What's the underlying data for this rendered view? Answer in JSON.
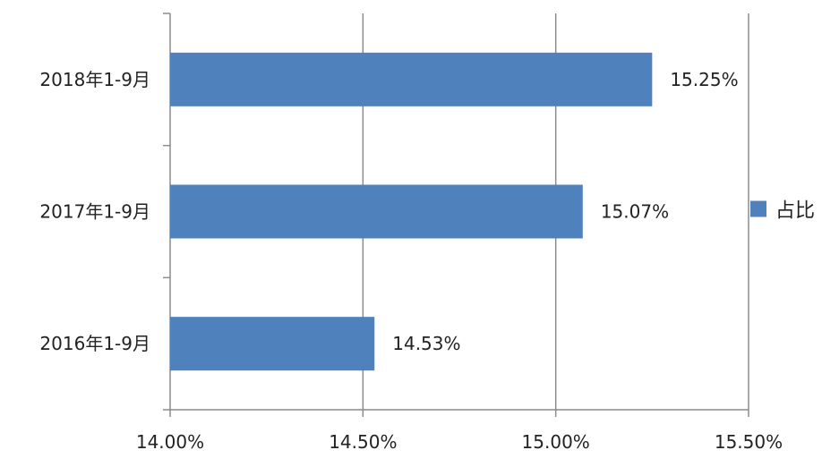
{
  "chart_data": {
    "type": "bar",
    "orientation": "horizontal",
    "categories": [
      "2018年1-9月",
      "2017年1-9月",
      "2016年1-9月"
    ],
    "series": [
      {
        "name": "占比",
        "values": [
          15.25,
          15.07,
          14.53
        ],
        "labels": [
          "15.25%",
          "15.07%",
          "14.53%"
        ],
        "color": "#4f81bd"
      }
    ],
    "xlim": [
      14.0,
      15.5
    ],
    "xticks": [
      14.0,
      14.5,
      15.0,
      15.5
    ],
    "xtick_labels": [
      "14.00%",
      "14.50%",
      "15.00%",
      "15.50%"
    ],
    "grid": "vertical",
    "legend": "right",
    "title": "",
    "xlabel": "",
    "ylabel": ""
  }
}
